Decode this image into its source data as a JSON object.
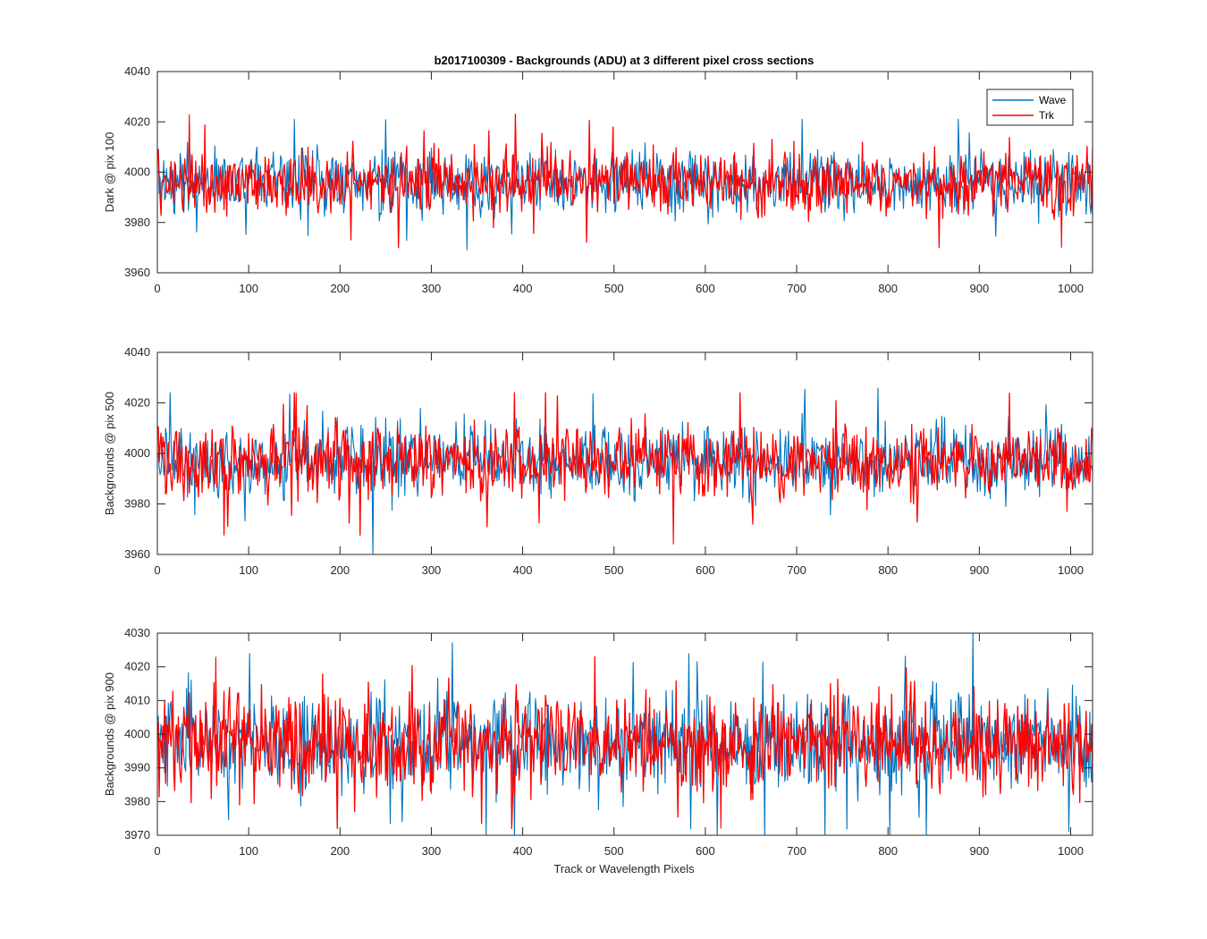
{
  "chart_data": [
    {
      "type": "line",
      "title": "b2017100309 - Backgrounds (ADU) at 3 different pixel cross sections",
      "xlabel": "",
      "ylabel": "Dark @ pix 100",
      "xlim": [
        0,
        1024
      ],
      "ylim": [
        3960,
        4040
      ],
      "xticks": [
        0,
        100,
        200,
        300,
        400,
        500,
        600,
        700,
        800,
        900,
        1000
      ],
      "yticks": [
        3960,
        3980,
        4000,
        4020,
        4040
      ],
      "x_range": [
        1,
        1024
      ],
      "grid": false,
      "legend": "top-right",
      "series": [
        {
          "name": "Wave",
          "color": "#0072BD",
          "mean": 3996,
          "spread": 6.5,
          "min": 3969,
          "max": 4021
        },
        {
          "name": "Trk",
          "color": "#FF0000",
          "mean": 3996,
          "spread": 6.5,
          "min": 3970,
          "max": 4023
        }
      ]
    },
    {
      "type": "line",
      "title": "",
      "xlabel": "",
      "ylabel": "Backgrounds @ pix 500",
      "xlim": [
        0,
        1024
      ],
      "ylim": [
        3960,
        4040
      ],
      "xticks": [
        0,
        100,
        200,
        300,
        400,
        500,
        600,
        700,
        800,
        900,
        1000
      ],
      "yticks": [
        3960,
        3980,
        4000,
        4020,
        4040
      ],
      "x_range": [
        1,
        1024
      ],
      "grid": false,
      "series": [
        {
          "name": "Wave",
          "color": "#0072BD",
          "mean": 3997,
          "spread": 7,
          "min": 3960,
          "max": 4026
        },
        {
          "name": "Trk",
          "color": "#FF0000",
          "mean": 3997,
          "spread": 7,
          "min": 3964,
          "max": 4024
        }
      ]
    },
    {
      "type": "line",
      "title": "",
      "xlabel": "Track or Wavelength Pixels",
      "ylabel": "Backgrounds @ pix 900",
      "xlim": [
        0,
        1024
      ],
      "ylim": [
        3970,
        4030
      ],
      "xticks": [
        0,
        100,
        200,
        300,
        400,
        500,
        600,
        700,
        800,
        900,
        1000
      ],
      "yticks": [
        3970,
        3980,
        3990,
        4000,
        4010,
        4020,
        4030
      ],
      "x_range": [
        1,
        1024
      ],
      "grid": false,
      "series": [
        {
          "name": "Wave",
          "color": "#0072BD",
          "mean": 3997,
          "spread": 7.5,
          "min": 3970,
          "max": 4030
        },
        {
          "name": "Trk",
          "color": "#FF0000",
          "mean": 3997,
          "spread": 7.5,
          "min": 3972,
          "max": 4023
        }
      ]
    }
  ]
}
